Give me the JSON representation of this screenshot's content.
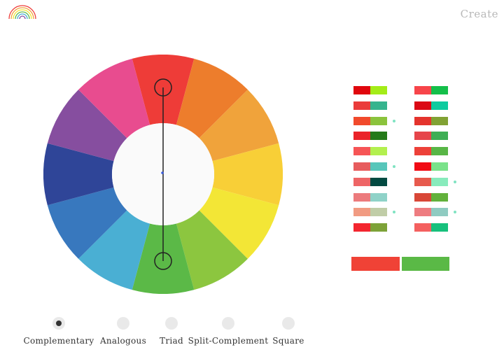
{
  "header": {
    "create_label": "Create"
  },
  "wheel": {
    "colors": [
      "#ee3c38",
      "#ed7d2c",
      "#f0a33b",
      "#f8cf37",
      "#f3e636",
      "#8cc63f",
      "#5bb947",
      "#4aafd3",
      "#3878be",
      "#2f4598",
      "#864e9f",
      "#e84c8f"
    ],
    "hub_color": "#fafafa",
    "pointer_color": "#222222",
    "marker_color": "#3b5ddd",
    "selected_segments": [
      0,
      6
    ]
  },
  "palette": {
    "left": [
      {
        "a": "#e0070d",
        "b": "#a4ec18",
        "dot": false
      },
      {
        "a": "#ea3c3b",
        "b": "#36b48e",
        "dot": false
      },
      {
        "a": "#f14a2c",
        "b": "#8bc33c",
        "dot": true
      },
      {
        "a": "#ea2329",
        "b": "#257a19",
        "dot": false
      },
      {
        "a": "#f65556",
        "b": "#b3f04f",
        "dot": false
      },
      {
        "a": "#e75c5d",
        "b": "#57c6ba",
        "dot": true
      },
      {
        "a": "#ee6566",
        "b": "#034a42",
        "dot": false
      },
      {
        "a": "#ec7b7d",
        "b": "#8fd2c8",
        "dot": false
      },
      {
        "a": "#f19b82",
        "b": "#c0cda7",
        "dot": true
      },
      {
        "a": "#f3262f",
        "b": "#7da238",
        "dot": false
      }
    ],
    "right": [
      {
        "a": "#f7454a",
        "b": "#14bf4a",
        "dot": false
      },
      {
        "a": "#db0914",
        "b": "#0ecb9f",
        "dot": false
      },
      {
        "a": "#e4342d",
        "b": "#81a234",
        "dot": false
      },
      {
        "a": "#e6454a",
        "b": "#3eae54",
        "dot": false
      },
      {
        "a": "#ed4139",
        "b": "#58b646",
        "dot": false
      },
      {
        "a": "#f10b14",
        "b": "#7ae28a",
        "dot": false
      },
      {
        "a": "#e75a4d",
        "b": "#88ebbc",
        "dot": true
      },
      {
        "a": "#d84737",
        "b": "#62b13b",
        "dot": false
      },
      {
        "a": "#ee7c80",
        "b": "#8fcbc1",
        "dot": true
      },
      {
        "a": "#f4605f",
        "b": "#17c07c",
        "dot": false
      }
    ]
  },
  "selected_pair": [
    "#f04236",
    "#5ab946"
  ],
  "schemes": [
    {
      "label": "Complementary",
      "active": true
    },
    {
      "label": "Analogous",
      "active": false
    },
    {
      "label": "Triad",
      "active": false
    },
    {
      "label": "Split-Complement",
      "active": false
    },
    {
      "label": "Square",
      "active": false
    }
  ]
}
